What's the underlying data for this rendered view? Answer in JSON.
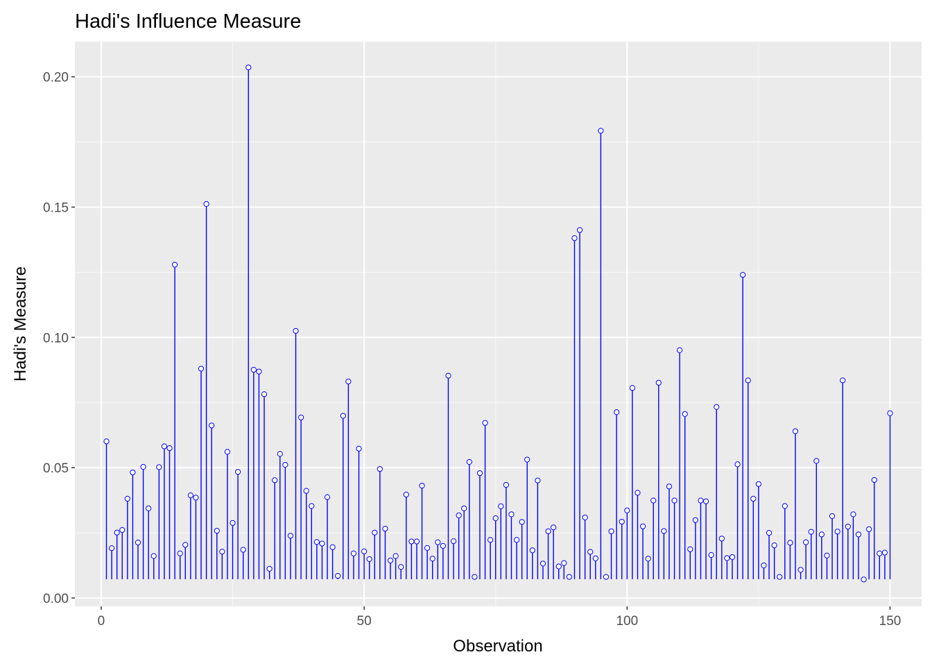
{
  "chart_data": {
    "type": "lollipop",
    "title": "Hadi's Influence Measure",
    "xlabel": "Observation",
    "ylabel": "Hadi's Measure",
    "xlim": [
      -5,
      156
    ],
    "ylim": [
      -0.0032,
      0.2135
    ],
    "baseline": 0.0072,
    "x_ticks": [
      0,
      50,
      100,
      150
    ],
    "x_tick_labels": [
      "0",
      "50",
      "100",
      "150"
    ],
    "y_ticks": [
      0.0,
      0.05,
      0.1,
      0.15,
      0.2
    ],
    "y_tick_labels": [
      "0.00",
      "0.05",
      "0.10",
      "0.15",
      "0.20"
    ],
    "grid": true,
    "colors": {
      "panel_background": "#ebebeb",
      "grid_major": "#ffffff",
      "line": "#0000ff",
      "point_outline": "#0000ff",
      "point_fill": "#ffffff"
    },
    "x": [
      1,
      2,
      3,
      4,
      5,
      6,
      7,
      8,
      9,
      10,
      11,
      12,
      13,
      14,
      15,
      16,
      17,
      18,
      19,
      20,
      21,
      22,
      23,
      24,
      25,
      26,
      27,
      28,
      29,
      30,
      31,
      32,
      33,
      34,
      35,
      36,
      37,
      38,
      39,
      40,
      41,
      42,
      43,
      44,
      45,
      46,
      47,
      48,
      49,
      50,
      51,
      52,
      53,
      54,
      55,
      56,
      57,
      58,
      59,
      60,
      61,
      62,
      63,
      64,
      65,
      66,
      67,
      68,
      69,
      70,
      71,
      72,
      73,
      74,
      75,
      76,
      77,
      78,
      79,
      80,
      81,
      82,
      83,
      84,
      85,
      86,
      87,
      88,
      89,
      90,
      91,
      92,
      93,
      94,
      95,
      96,
      97,
      98,
      99,
      100,
      101,
      102,
      103,
      104,
      105,
      106,
      107,
      108,
      109,
      110,
      111,
      112,
      113,
      114,
      115,
      116,
      117,
      118,
      119,
      120,
      121,
      122,
      123,
      124,
      125,
      126,
      127,
      128,
      129,
      130,
      131,
      132,
      133,
      134,
      135,
      136,
      137,
      138,
      139,
      140,
      141,
      142,
      143,
      144,
      145,
      146,
      147,
      148,
      149,
      150
    ],
    "values": [
      0.0601,
      0.0191,
      0.0251,
      0.0261,
      0.0381,
      0.0482,
      0.0213,
      0.0503,
      0.0344,
      0.0161,
      0.0502,
      0.0582,
      0.0575,
      0.1279,
      0.0171,
      0.0204,
      0.0394,
      0.0385,
      0.088,
      0.1512,
      0.0662,
      0.0258,
      0.0178,
      0.0561,
      0.0288,
      0.0484,
      0.0185,
      0.2036,
      0.0876,
      0.0869,
      0.0782,
      0.0112,
      0.0452,
      0.0553,
      0.0511,
      0.0239,
      0.1025,
      0.0693,
      0.0411,
      0.0353,
      0.0215,
      0.0209,
      0.0387,
      0.0195,
      0.0085,
      0.0699,
      0.0831,
      0.0171,
      0.0573,
      0.0179,
      0.0149,
      0.0251,
      0.0495,
      0.0266,
      0.0144,
      0.0161,
      0.0119,
      0.0397,
      0.0217,
      0.0217,
      0.0431,
      0.0192,
      0.0151,
      0.0214,
      0.02,
      0.0853,
      0.0218,
      0.0317,
      0.0344,
      0.0522,
      0.0081,
      0.0479,
      0.0672,
      0.0223,
      0.0306,
      0.0352,
      0.0434,
      0.0321,
      0.0223,
      0.0292,
      0.0531,
      0.0183,
      0.0451,
      0.0132,
      0.0256,
      0.0271,
      0.0121,
      0.0134,
      0.0081,
      0.1381,
      0.1412,
      0.0309,
      0.0177,
      0.0152,
      0.1793,
      0.0081,
      0.0256,
      0.0713,
      0.0293,
      0.0336,
      0.0806,
      0.0404,
      0.0275,
      0.0151,
      0.0374,
      0.0826,
      0.0257,
      0.0428,
      0.0374,
      0.0951,
      0.0706,
      0.0187,
      0.0299,
      0.0374,
      0.0371,
      0.0165,
      0.0733,
      0.0228,
      0.0153,
      0.0157,
      0.0513,
      0.124,
      0.0835,
      0.0381,
      0.0437,
      0.0125,
      0.025,
      0.0202,
      0.0081,
      0.0353,
      0.0212,
      0.064,
      0.0108,
      0.0214,
      0.0254,
      0.0526,
      0.0244,
      0.0163,
      0.0314,
      0.0255,
      0.0835,
      0.0274,
      0.0321,
      0.0244,
      0.0071,
      0.0264,
      0.0453,
      0.0171,
      0.0174,
      0.0709
    ]
  }
}
